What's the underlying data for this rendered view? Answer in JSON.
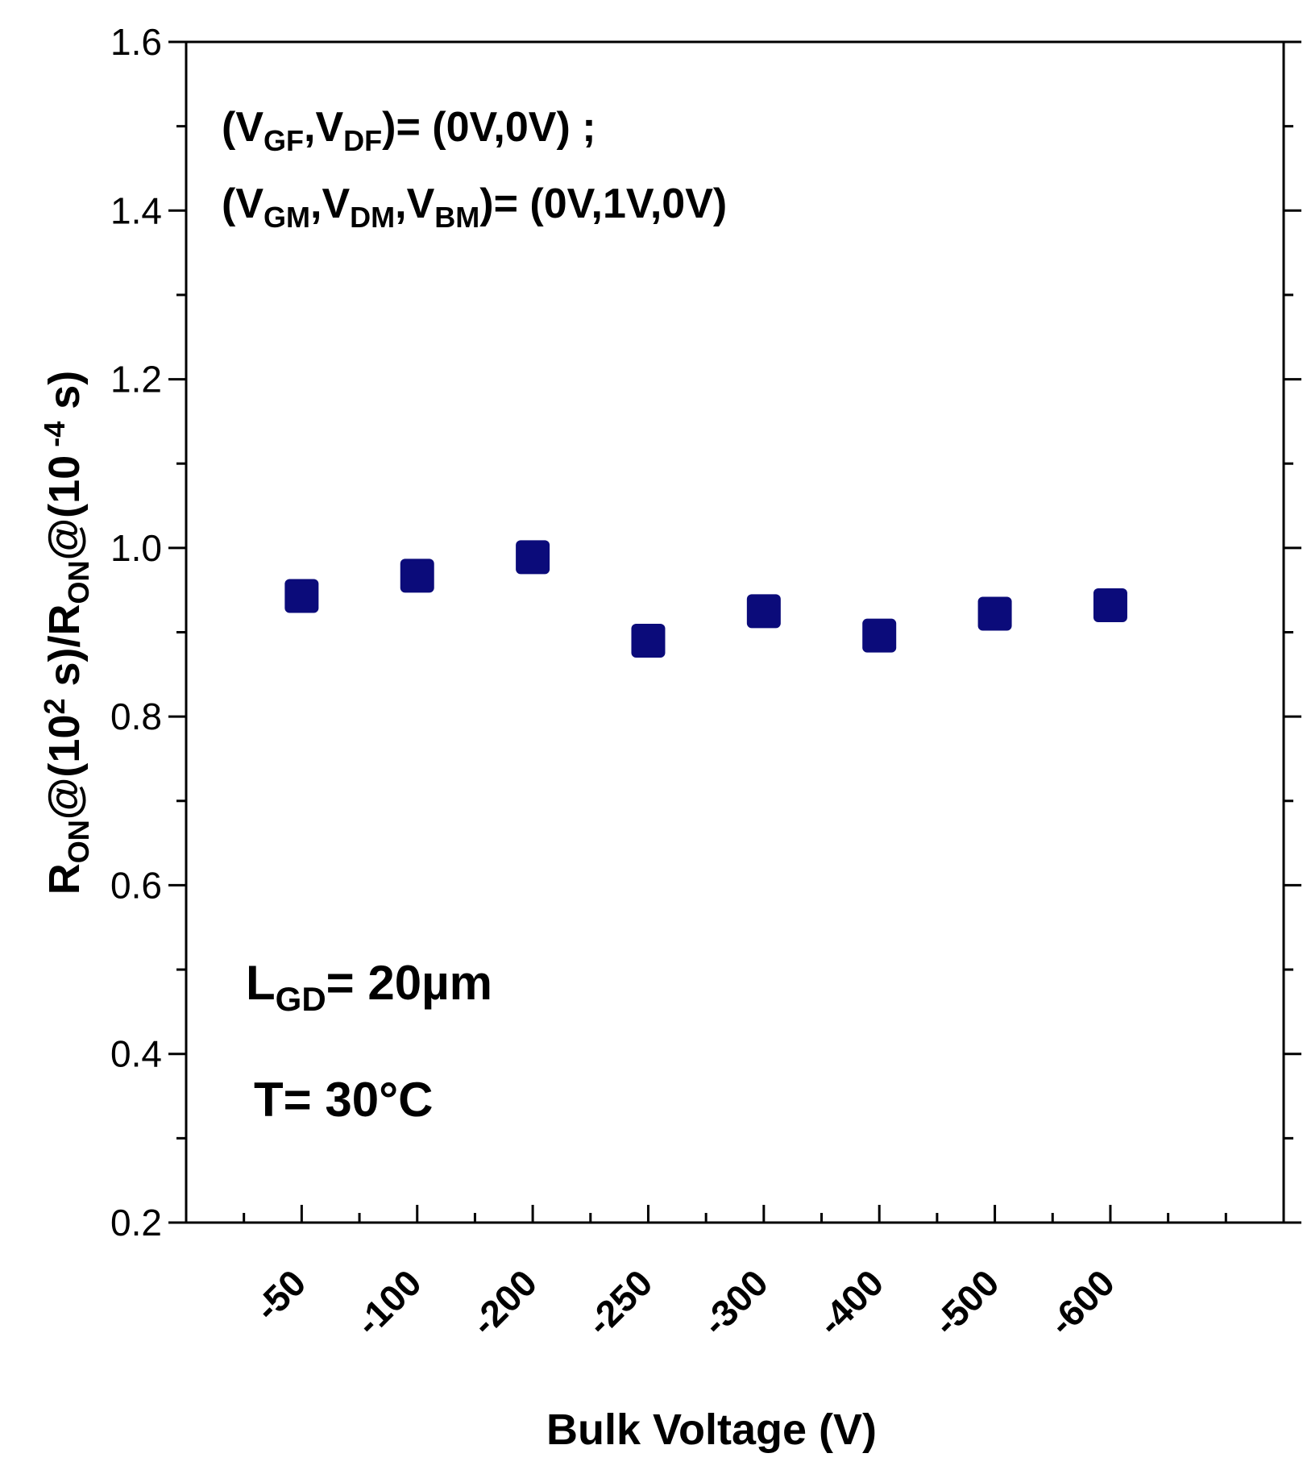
{
  "chart_data": {
    "type": "scatter",
    "categories": [
      "-50",
      "-100",
      "-200",
      "-250",
      "-300",
      "-400",
      "-500",
      "-600"
    ],
    "series": [
      {
        "name": "R_ON ratio",
        "values": [
          0.943,
          0.967,
          0.989,
          0.89,
          0.925,
          0.896,
          0.922,
          0.932
        ],
        "color": "#0b0b7a",
        "marker": "square"
      }
    ],
    "xlabel": "Bulk Voltage (V)",
    "ylabel": {
      "r1": "R",
      "s1": "ON",
      "t1": "@(10",
      "p1": "2",
      "t2": " s)/R",
      "s2": "ON",
      "t3": "@(10",
      "p2": " -4",
      "t4": " s)"
    },
    "ylim": [
      0.2,
      1.6
    ],
    "yticks": [
      "0.2",
      "0.4",
      "0.6",
      "0.8",
      "1.0",
      "1.2",
      "1.4",
      "1.6"
    ],
    "yminor_step": 0.1,
    "grid": false,
    "annotations": {
      "line1": {
        "a": "(V",
        "b": "GF",
        "c": ",V",
        "d": "DF",
        "e": ")= (0V,0V) ;"
      },
      "line2": {
        "a": "(V",
        "b": "GM",
        "c": ",V",
        "d": "DM",
        "e": ",V",
        "f": "BM",
        "g": ")= (0V,1V,0V)"
      },
      "line3": {
        "a": "L",
        "b": "GD",
        "c": "= 20µm"
      },
      "line4": "T= 30°C"
    }
  }
}
